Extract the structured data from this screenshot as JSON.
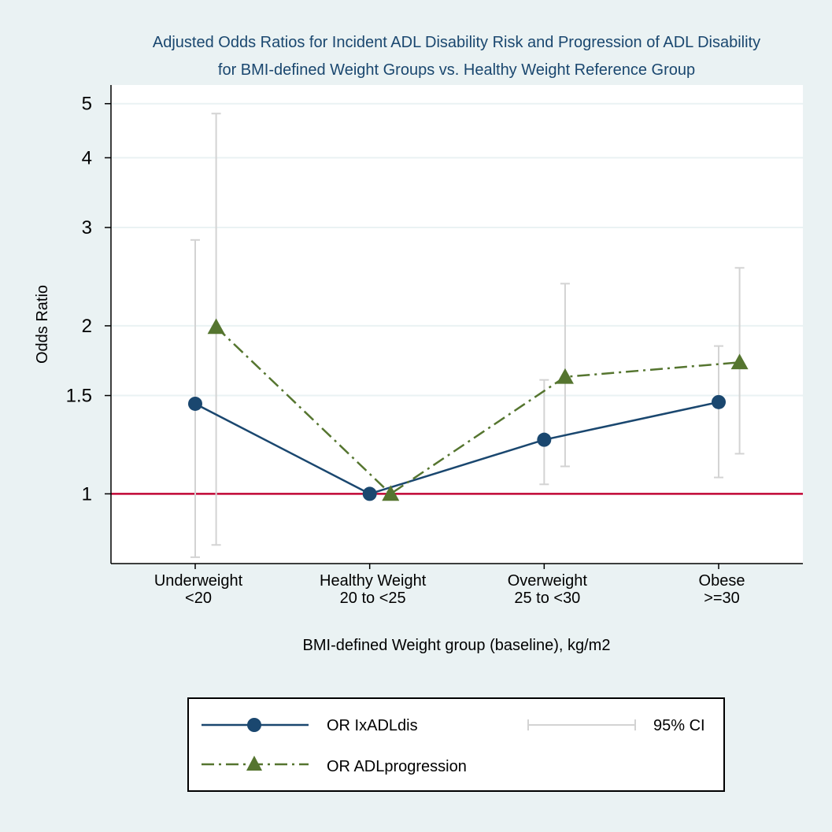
{
  "chart_data": {
    "type": "line",
    "title": [
      "Adjusted Odds Ratios for Incident ADL Disability Risk and Progression of ADL Disability",
      "for BMI-defined Weight Groups vs. Healthy Weight Reference Group"
    ],
    "ylabel": "Odds Ratio",
    "xlabel": "BMI-defined Weight group (baseline), kg/m2",
    "yscale": "log",
    "ylim": [
      0.75,
      5.4
    ],
    "yticks": [
      {
        "value": 1,
        "label": "1"
      },
      {
        "value": 1.5,
        "label": "1.5"
      },
      {
        "value": 2,
        "label": "2"
      },
      {
        "value": 3,
        "label": "3"
      },
      {
        "value": 4,
        "label": "4"
      },
      {
        "value": 5,
        "label": "5"
      }
    ],
    "reference_line": {
      "value": 1,
      "color": "#c10534"
    },
    "categories": [
      {
        "line1": "Underweight",
        "line2": "<20"
      },
      {
        "line1": "Healthy Weight",
        "line2": "20  to <25"
      },
      {
        "line1": "Overweight",
        "line2": "25 to <30"
      },
      {
        "line1": "Obese",
        "line2": ">=30"
      }
    ],
    "series": [
      {
        "name": "OR IxADLdis",
        "color": "#1a476f",
        "marker": "circle",
        "line_style": "solid",
        "x_offset": 0,
        "values": [
          1.45,
          1.0,
          1.25,
          1.46
        ],
        "ci_low": [
          0.77,
          null,
          1.04,
          1.07
        ],
        "ci_high": [
          2.85,
          null,
          1.6,
          1.84
        ]
      },
      {
        "name": "OR ADLprogression",
        "color": "#55752f",
        "marker": "triangle",
        "line_style": "dashdot",
        "x_offset": 0.12,
        "values": [
          1.99,
          1.0,
          1.62,
          1.72
        ],
        "ci_low": [
          0.81,
          null,
          1.12,
          1.18
        ],
        "ci_high": [
          4.8,
          null,
          2.38,
          2.54
        ]
      }
    ],
    "ci_color": "#d3d3d3",
    "legend": {
      "position": "bottom",
      "ci_label": "95% CI"
    }
  }
}
